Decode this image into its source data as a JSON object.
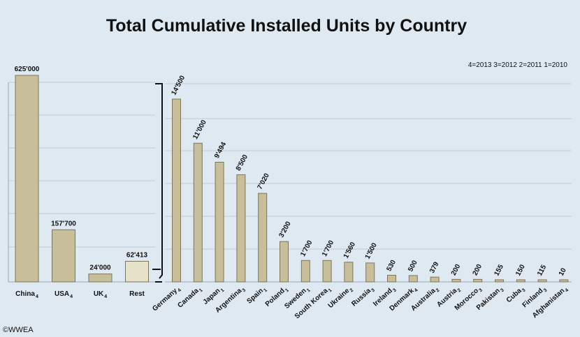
{
  "title": "Total Cumulative Installed Units by Country",
  "legend_text": "4=2013  3=2012  2=2011  1=2010",
  "copyright": "©WWEA",
  "colors": {
    "background": "#dfe9f1",
    "bar_fill": "#c8bf9a",
    "bar_stroke": "#7d7558",
    "gridline": "#c0ccd8"
  },
  "chart_data": [
    {
      "type": "bar",
      "title": "",
      "categories": [
        "China",
        "USA",
        "UK",
        "Rest"
      ],
      "year_codes": [
        "4",
        "4",
        "4",
        ""
      ],
      "values": [
        625000,
        157700,
        24000,
        62413
      ],
      "value_labels": [
        "625'000",
        "157'700",
        "24'000",
        "62'413"
      ],
      "ylim": [
        0,
        625000
      ],
      "grid": true
    },
    {
      "type": "bar",
      "title": "",
      "categories": [
        "Germany",
        "Canada",
        "Japan",
        "Argentina",
        "Spain",
        "Poland",
        "Sweden",
        "South Korea",
        "Ukraine",
        "Russia",
        "Ireland",
        "Denmark",
        "Australia",
        "Austria",
        "Morocco",
        "Pakistan",
        "Cuba",
        "Finland",
        "Afghanistan"
      ],
      "year_codes": [
        "4",
        "1",
        "1",
        "3",
        "1",
        "1",
        "1",
        "1",
        "2",
        "3",
        "3",
        "4",
        "2",
        "2",
        "3",
        "3",
        "3",
        "3",
        "4"
      ],
      "values": [
        14500,
        11000,
        9494,
        8500,
        7020,
        3200,
        1700,
        1700,
        1560,
        1500,
        530,
        500,
        379,
        200,
        200,
        155,
        150,
        115,
        10
      ],
      "value_labels": [
        "14'500",
        "11'000",
        "9'494",
        "8'500",
        "7'020",
        "3'200",
        "1'700",
        "1'700",
        "1'560",
        "1'500",
        "530",
        "500",
        "379",
        "200",
        "200",
        "155",
        "150",
        "115",
        "10"
      ],
      "ylim": [
        0,
        14500
      ],
      "grid": true
    }
  ]
}
